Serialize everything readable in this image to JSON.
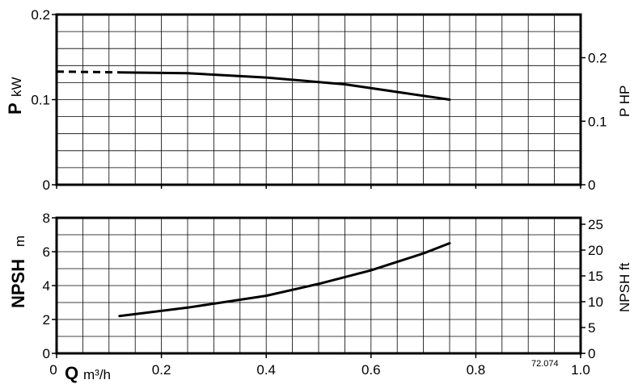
{
  "chart_data": [
    {
      "type": "line",
      "xlabel_symbol": "Q",
      "xlabel_unit": "m³/h",
      "ylabel_symbol": "P",
      "ylabel_unit": "kW",
      "y2label": "P HP",
      "xlim": [
        0,
        1.0
      ],
      "ylim": [
        0,
        0.2
      ],
      "y2lim": [
        0,
        0.268
      ],
      "x_ticks": [
        0,
        0.2,
        0.4,
        0.6,
        0.8,
        1.0
      ],
      "x_tick_labels": [
        "0",
        "0.2",
        "0.4",
        "0.6",
        "0.8",
        "1.0"
      ],
      "y_ticks": [
        0,
        0.1,
        0.2
      ],
      "y_tick_labels": [
        "0",
        "0.1",
        "0.2"
      ],
      "y2_ticks": [
        0,
        0.1,
        0.2
      ],
      "y2_tick_labels": [
        "0",
        "0.1",
        "0.2"
      ],
      "grid": true,
      "series": [
        {
          "style": "dashed",
          "x": [
            0.0,
            0.12
          ],
          "y": [
            0.133,
            0.132
          ]
        },
        {
          "style": "solid",
          "x": [
            0.12,
            0.25,
            0.4,
            0.55,
            0.65,
            0.75
          ],
          "y": [
            0.132,
            0.131,
            0.126,
            0.118,
            0.109,
            0.1
          ]
        }
      ]
    },
    {
      "type": "line",
      "xlabel_symbol": "Q",
      "xlabel_unit": "m³/h",
      "ylabel_symbol": "NPSH",
      "ylabel_unit": "m",
      "y2label": "NPSH ft",
      "xlim": [
        0,
        1.0
      ],
      "ylim": [
        0,
        8
      ],
      "y2lim": [
        0,
        26.25
      ],
      "x_ticks": [
        0,
        0.2,
        0.4,
        0.6,
        0.8,
        1.0
      ],
      "x_tick_labels": [
        "0",
        "0.2",
        "0.4",
        "0.6",
        "0.8",
        "1.0"
      ],
      "y_ticks": [
        0,
        2,
        4,
        6,
        8
      ],
      "y_tick_labels": [
        "0",
        "2",
        "4",
        "6",
        "8"
      ],
      "y2_ticks": [
        0,
        5,
        10,
        15,
        20,
        25
      ],
      "y2_tick_labels": [
        "0",
        "5",
        "10",
        "15",
        "20",
        "25"
      ],
      "grid": true,
      "series": [
        {
          "style": "solid",
          "x": [
            0.12,
            0.25,
            0.4,
            0.5,
            0.6,
            0.7,
            0.75
          ],
          "y": [
            2.2,
            2.7,
            3.4,
            4.1,
            4.9,
            5.9,
            6.5
          ]
        }
      ],
      "annotation": "72.074"
    }
  ]
}
